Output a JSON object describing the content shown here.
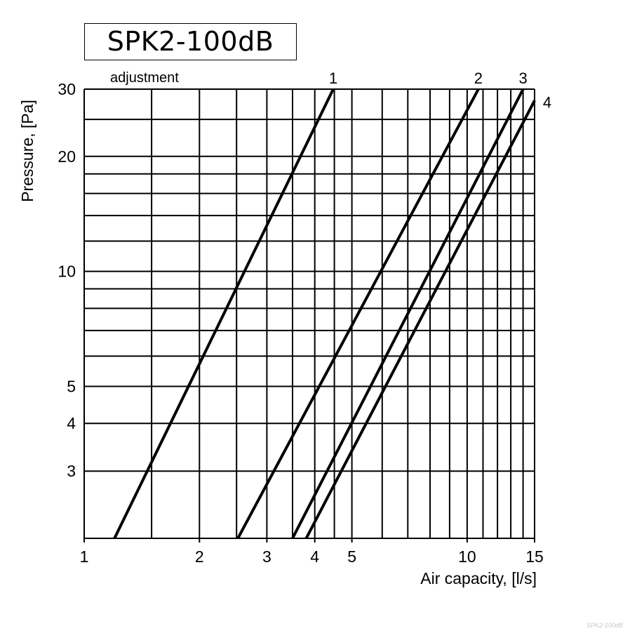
{
  "title": "SPK2-100dB",
  "watermark": "SPK2-100dB",
  "chart_data": {
    "type": "line",
    "title": "SPK2-100dB",
    "xlabel": "Air capacity, [l/s]",
    "ylabel": "Pressure, [Pa]",
    "x_scale": "log",
    "y_scale": "log",
    "xlim": [
      1,
      15
    ],
    "ylim": [
      2,
      30
    ],
    "x_ticks": [
      1,
      2,
      3,
      4,
      5,
      10,
      15
    ],
    "y_ticks": [
      3,
      4,
      5,
      10,
      20,
      30
    ],
    "x_grid": [
      1,
      1.5,
      2,
      2.5,
      3,
      3.5,
      4,
      4.5,
      5,
      6,
      7,
      8,
      9,
      10,
      11,
      12,
      13,
      14,
      15
    ],
    "y_grid": [
      2,
      3,
      4,
      5,
      6,
      7,
      8,
      9,
      10,
      12,
      14,
      16,
      18,
      20,
      25,
      30
    ],
    "grid": true,
    "series_label_title": "adjustment",
    "series": [
      {
        "label": "1",
        "points": [
          [
            1.2,
            2
          ],
          [
            4.47,
            30
          ]
        ]
      },
      {
        "label": "2",
        "points": [
          [
            2.52,
            2
          ],
          [
            10.7,
            30
          ]
        ]
      },
      {
        "label": "3",
        "points": [
          [
            3.5,
            2
          ],
          [
            14.0,
            30
          ]
        ]
      },
      {
        "label": "4",
        "points": [
          [
            3.8,
            2
          ],
          [
            15.0,
            28
          ]
        ]
      }
    ]
  }
}
